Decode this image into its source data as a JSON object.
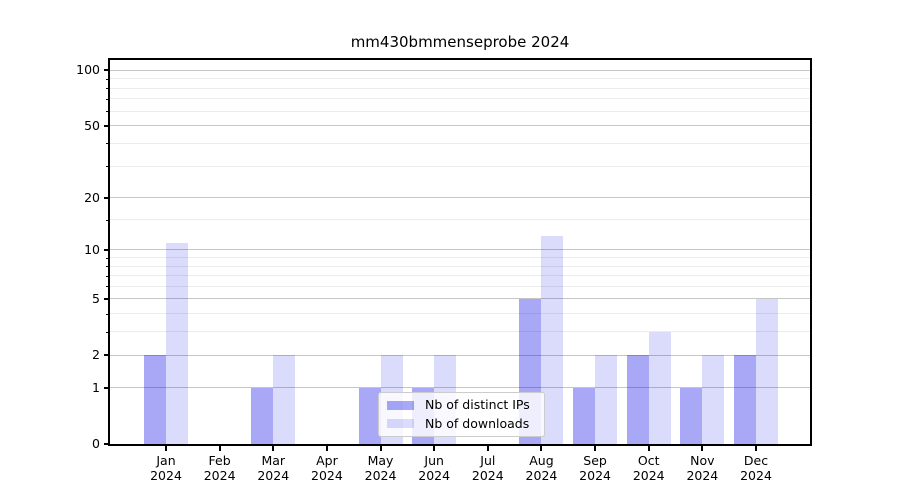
{
  "chart_data": {
    "type": "bar",
    "title": "mm430bmmenseprobe 2024",
    "categories": [
      "Jan",
      "Feb",
      "Mar",
      "Apr",
      "May",
      "Jun",
      "Jul",
      "Aug",
      "Sep",
      "Oct",
      "Nov",
      "Dec"
    ],
    "year_label": "2024",
    "series": [
      {
        "name": "Nb of distinct IPs",
        "key": "distinct-ips",
        "color": "rgba(0,0,230,0.34)",
        "values": [
          2,
          0,
          1,
          0,
          1,
          1,
          0,
          5,
          1,
          2,
          1,
          2
        ]
      },
      {
        "name": "Nb of downloads",
        "key": "downloads",
        "color": "rgba(0,0,230,0.14)",
        "values": [
          11,
          0,
          2,
          0,
          2,
          2,
          0,
          12,
          2,
          3,
          2,
          5
        ]
      }
    ],
    "yscale": "log1p",
    "ylim": [
      0,
      114
    ],
    "yticks_major": [
      0,
      1,
      2,
      5,
      10,
      20,
      50,
      100
    ],
    "yticks_minor": [
      3,
      4,
      6,
      7,
      8,
      9,
      15,
      30,
      40,
      60,
      70,
      80,
      90
    ],
    "grid": true,
    "legend_position": "lower-center-inside",
    "colors": {
      "major_grid": "#c6c6c6",
      "minor_grid": "#ececec",
      "axis": "#000000",
      "background": "#ffffff"
    }
  }
}
